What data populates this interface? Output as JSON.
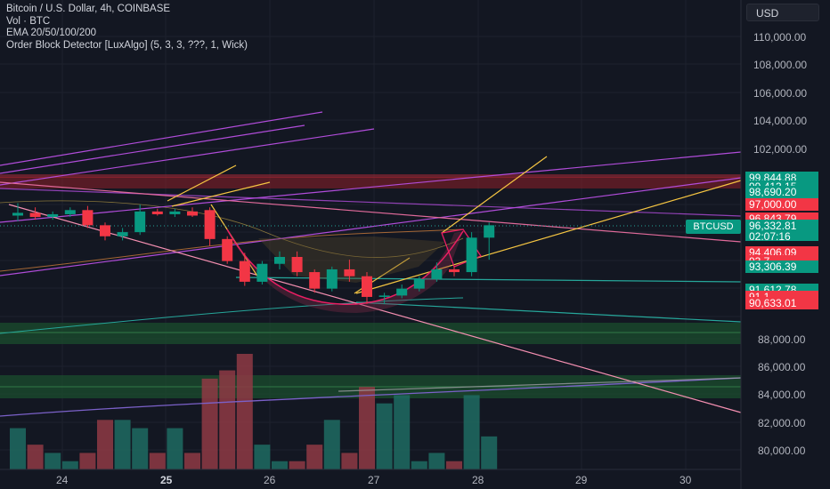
{
  "legend": {
    "symbol_line": "Bitcoin / U.S. Dollar, 4h, COINBASE",
    "volume_line": "Vol · BTC",
    "ema_line": "EMA 20/50/100/200",
    "indicator_line": "Order Block Detector [LuxAlgo] (5, 3, 3, ???, 1, Wick)"
  },
  "currency_button": {
    "label": "USD"
  },
  "price_axis": {
    "labels": [
      "110,000.00",
      "108,000.00",
      "106,000.00",
      "104,000.00",
      "102,000.00",
      "88,000.00",
      "86,000.00",
      "84,000.00",
      "82,000.00",
      "80,000.00"
    ]
  },
  "price_tags": [
    {
      "label": "99,844.88",
      "color": "#089981"
    },
    {
      "label": "99,413.15",
      "color": "#089981"
    },
    {
      "label": "98,690.20",
      "color": "#089981"
    },
    {
      "label": "97,000.00",
      "color": "#f23645"
    },
    {
      "label": "96,843.79",
      "color": "#f23645"
    },
    {
      "label": "94,406.09",
      "color": "#f23645"
    },
    {
      "label": "93,7__.__",
      "color": "#f23645"
    },
    {
      "label": "93,306.39",
      "color": "#089981"
    },
    {
      "label": "91,612.78",
      "color": "#089981"
    },
    {
      "label": "91,1__.__",
      "color": "#f23645"
    },
    {
      "label": "90,633.01",
      "color": "#f23645"
    }
  ],
  "current_price": {
    "symbol": "BTCUSD",
    "price": "96,332.81",
    "countdown": "02:07:16"
  },
  "time_axis": {
    "labels": [
      "24",
      "25",
      "26",
      "27",
      "28",
      "29",
      "30"
    ]
  },
  "chart_data": {
    "type": "candlestick",
    "timeframe": "4h",
    "y_range": [
      79000,
      111500
    ],
    "candles": [
      {
        "o": 97000,
        "h": 97900,
        "l": 96600,
        "c": 97200
      },
      {
        "o": 97200,
        "h": 97600,
        "l": 96700,
        "c": 96900
      },
      {
        "o": 96900,
        "h": 97300,
        "l": 96700,
        "c": 97100
      },
      {
        "o": 97100,
        "h": 97600,
        "l": 96900,
        "c": 97400
      },
      {
        "o": 97400,
        "h": 97700,
        "l": 96100,
        "c": 96300
      },
      {
        "o": 96300,
        "h": 96500,
        "l": 95200,
        "c": 95500
      },
      {
        "o": 95500,
        "h": 96100,
        "l": 95200,
        "c": 95800
      },
      {
        "o": 95800,
        "h": 97800,
        "l": 95600,
        "c": 97300
      },
      {
        "o": 97300,
        "h": 97500,
        "l": 97000,
        "c": 97100
      },
      {
        "o": 97100,
        "h": 97500,
        "l": 96900,
        "c": 97300
      },
      {
        "o": 97300,
        "h": 97600,
        "l": 96900,
        "c": 97000
      },
      {
        "o": 97400,
        "h": 97600,
        "l": 94800,
        "c": 95300
      },
      {
        "o": 95300,
        "h": 95500,
        "l": 93500,
        "c": 93700
      },
      {
        "o": 93700,
        "h": 94300,
        "l": 91900,
        "c": 92200
      },
      {
        "o": 92200,
        "h": 93700,
        "l": 92000,
        "c": 93500
      },
      {
        "o": 93500,
        "h": 94400,
        "l": 93100,
        "c": 94000
      },
      {
        "o": 94000,
        "h": 94400,
        "l": 92600,
        "c": 92900
      },
      {
        "o": 92900,
        "h": 93100,
        "l": 91400,
        "c": 91700
      },
      {
        "o": 91700,
        "h": 93300,
        "l": 91500,
        "c": 93100
      },
      {
        "o": 93100,
        "h": 93800,
        "l": 92200,
        "c": 92600
      },
      {
        "o": 92600,
        "h": 92900,
        "l": 90600,
        "c": 91100
      },
      {
        "o": 91100,
        "h": 91400,
        "l": 90600,
        "c": 91200
      },
      {
        "o": 91200,
        "h": 92000,
        "l": 91000,
        "c": 91700
      },
      {
        "o": 91700,
        "h": 92600,
        "l": 91500,
        "c": 92400
      },
      {
        "o": 92400,
        "h": 93600,
        "l": 92200,
        "c": 93100
      },
      {
        "o": 93100,
        "h": 93300,
        "l": 92600,
        "c": 92900
      },
      {
        "o": 92900,
        "h": 95800,
        "l": 92600,
        "c": 95400
      },
      {
        "o": 95400,
        "h": 96500,
        "l": 93800,
        "c": 96300
      }
    ],
    "volumes": [
      5,
      3,
      2,
      1,
      2,
      6,
      6,
      5,
      2,
      5,
      2,
      11,
      12,
      14,
      3,
      1,
      1,
      3,
      6,
      2,
      10,
      8,
      9,
      1,
      2,
      1,
      9,
      4
    ]
  }
}
